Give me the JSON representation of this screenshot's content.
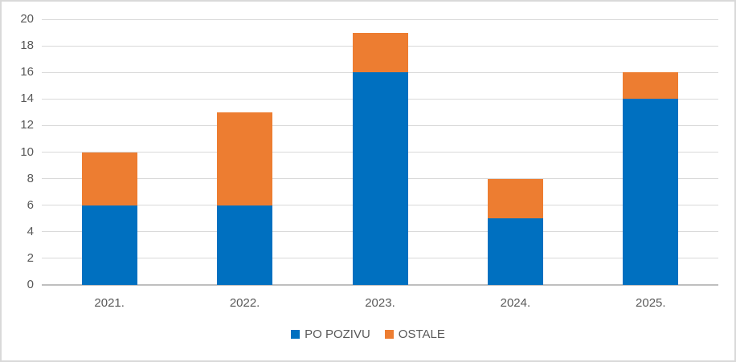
{
  "chart_data": {
    "type": "bar",
    "stacked": true,
    "title": "",
    "xlabel": "",
    "ylabel": "",
    "categories": [
      "2021.",
      "2022.",
      "2023.",
      "2024.",
      "2025."
    ],
    "series": [
      {
        "name": "PO POZIVU",
        "color": "#0070C0",
        "values": [
          6,
          6,
          16,
          5,
          14
        ]
      },
      {
        "name": "OSTALE",
        "color": "#ED7D31",
        "values": [
          4,
          7,
          3,
          3,
          2
        ]
      }
    ],
    "totals": [
      10,
      13,
      19,
      8,
      16
    ],
    "ylim": [
      0,
      20
    ],
    "y_ticks": [
      0,
      2,
      4,
      6,
      8,
      10,
      12,
      14,
      16,
      18,
      20
    ],
    "grid": true,
    "legend_position": "bottom"
  },
  "colors": {
    "gridline": "#D9D9D9",
    "axis_line": "#BFBFBF",
    "tick_label": "#595959",
    "legend_label": "#595959",
    "frame_border": "#D9D9D9",
    "background": "#FFFFFF"
  }
}
